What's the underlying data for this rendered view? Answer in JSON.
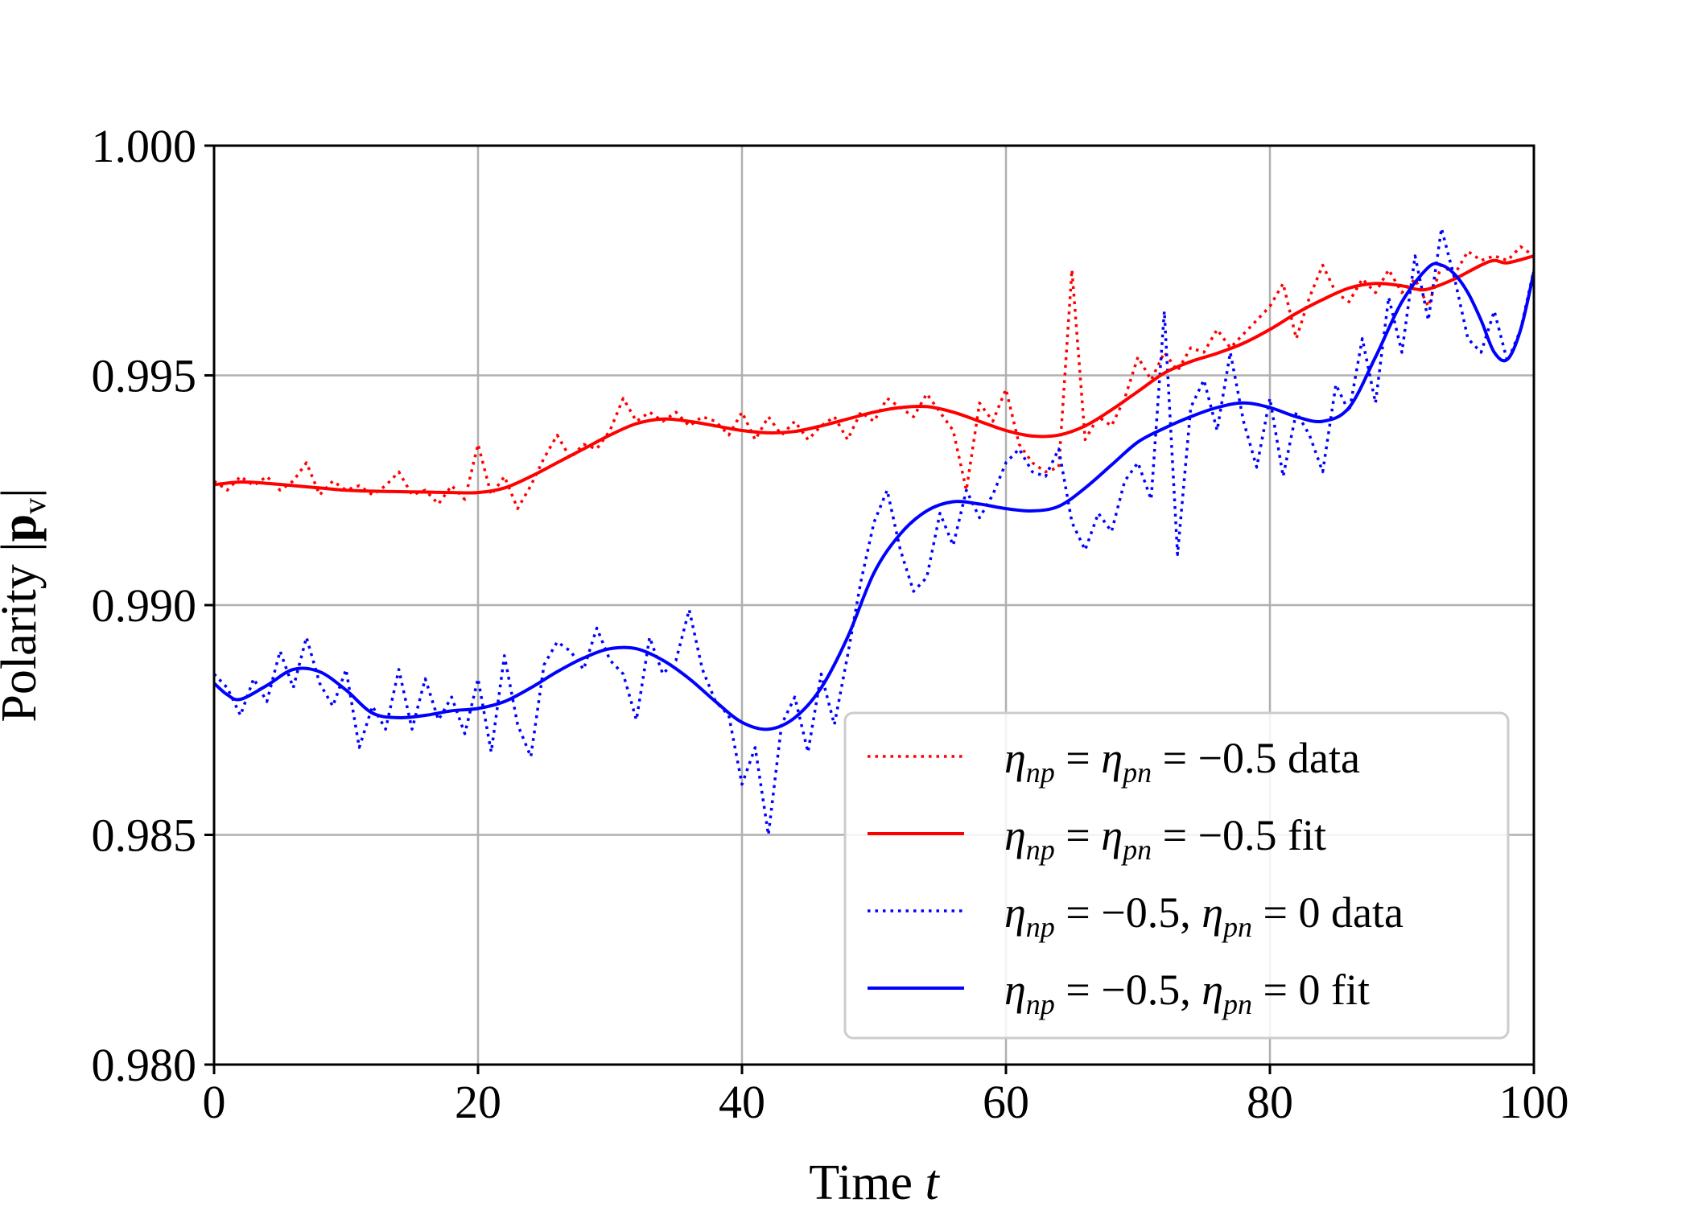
{
  "chart_data": {
    "type": "line",
    "title": "",
    "xlabel": "Time t",
    "xlabel_prefix": "Time ",
    "xlabel_var": "t",
    "ylabel": "Polarity |p_v|",
    "ylabel_prefix": "Polarity |",
    "ylabel_bold": "p",
    "ylabel_sub": "v",
    "ylabel_suffix": "|",
    "xlim": [
      0,
      100
    ],
    "ylim": [
      0.98,
      1.0
    ],
    "grid": true,
    "legend_position": "lower-right",
    "x_ticks": [
      {
        "value": 0,
        "label": "0"
      },
      {
        "value": 20,
        "label": "20"
      },
      {
        "value": 40,
        "label": "40"
      },
      {
        "value": 60,
        "label": "60"
      },
      {
        "value": 80,
        "label": "80"
      },
      {
        "value": 100,
        "label": "100"
      }
    ],
    "y_ticks": [
      {
        "value": 0.98,
        "label": "0.980"
      },
      {
        "value": 0.985,
        "label": "0.985"
      },
      {
        "value": 0.99,
        "label": "0.990"
      },
      {
        "value": 0.995,
        "label": "0.995"
      },
      {
        "value": 1.0,
        "label": "1.000"
      }
    ],
    "series": [
      {
        "name": "η_np = η_pn = −0.5 data",
        "legend": {
          "sym1": "η",
          "sub1": "np",
          "mid": " = ",
          "sym2": "η",
          "sub2": "pn",
          "rest": " = −0.5 data"
        },
        "color": "#ff0000",
        "style": "dotted",
        "x": [
          0,
          1,
          2,
          3,
          4,
          5,
          6,
          7,
          8,
          9,
          10,
          11,
          12,
          13,
          14,
          15,
          16,
          17,
          18,
          19,
          20,
          21,
          22,
          23,
          24,
          25,
          26,
          27,
          28,
          29,
          30,
          31,
          32,
          33,
          34,
          35,
          36,
          37,
          38,
          39,
          40,
          41,
          42,
          43,
          44,
          45,
          46,
          47,
          48,
          49,
          50,
          51,
          52,
          53,
          54,
          55,
          56,
          57,
          58,
          59,
          60,
          61,
          62,
          63,
          64,
          65,
          66,
          67,
          68,
          69,
          70,
          71,
          72,
          73,
          74,
          75,
          76,
          77,
          78,
          79,
          80,
          81,
          82,
          83,
          84,
          85,
          86,
          87,
          88,
          89,
          90,
          91,
          92,
          93,
          94,
          95,
          96,
          97,
          98,
          99,
          100
        ],
        "values": [
          0.9927,
          0.9925,
          0.9928,
          0.9926,
          0.9928,
          0.9925,
          0.9927,
          0.9931,
          0.9924,
          0.9927,
          0.9925,
          0.9926,
          0.9924,
          0.9926,
          0.9929,
          0.9924,
          0.9925,
          0.9922,
          0.9926,
          0.9923,
          0.9935,
          0.9924,
          0.9928,
          0.9921,
          0.9926,
          0.9932,
          0.9937,
          0.9932,
          0.9935,
          0.9934,
          0.9938,
          0.9945,
          0.994,
          0.9942,
          0.994,
          0.9942,
          0.9939,
          0.9941,
          0.994,
          0.9937,
          0.9942,
          0.9936,
          0.9941,
          0.9937,
          0.994,
          0.9936,
          0.9939,
          0.9941,
          0.9936,
          0.9942,
          0.994,
          0.9945,
          0.9943,
          0.9941,
          0.9946,
          0.9942,
          0.9938,
          0.9925,
          0.9944,
          0.994,
          0.9947,
          0.9935,
          0.9931,
          0.9929,
          0.993,
          0.9973,
          0.9936,
          0.9941,
          0.9939,
          0.9945,
          0.9954,
          0.9949,
          0.9955,
          0.9951,
          0.9956,
          0.9955,
          0.996,
          0.9956,
          0.9959,
          0.9962,
          0.9965,
          0.997,
          0.9958,
          0.9967,
          0.9974,
          0.9968,
          0.9966,
          0.9971,
          0.9968,
          0.9973,
          0.9968,
          0.9971,
          0.9965,
          0.9974,
          0.9972,
          0.9977,
          0.9975,
          0.9976,
          0.9975,
          0.9978,
          0.9976
        ]
      },
      {
        "name": "η_np = η_pn = −0.5 fit",
        "legend": {
          "sym1": "η",
          "sub1": "np",
          "mid": " = ",
          "sym2": "η",
          "sub2": "pn",
          "rest": " = −0.5 fit"
        },
        "color": "#ff0000",
        "style": "solid",
        "x": [
          0,
          2,
          4,
          6,
          8,
          10,
          12,
          14,
          16,
          18,
          20,
          22,
          24,
          26,
          28,
          30,
          32,
          34,
          36,
          38,
          40,
          42,
          44,
          46,
          48,
          50,
          52,
          54,
          56,
          58,
          60,
          62,
          64,
          66,
          68,
          70,
          72,
          74,
          76,
          78,
          80,
          82,
          84,
          86,
          88,
          90,
          91,
          92,
          94,
          96,
          97,
          98,
          100
        ],
        "values": [
          0.99262,
          0.99268,
          0.99265,
          0.9926,
          0.99255,
          0.9925,
          0.99248,
          0.99247,
          0.99246,
          0.99245,
          0.99245,
          0.99255,
          0.9928,
          0.9931,
          0.9934,
          0.9937,
          0.99395,
          0.99405,
          0.994,
          0.9939,
          0.9938,
          0.99375,
          0.99378,
          0.9939,
          0.99405,
          0.9942,
          0.9943,
          0.99432,
          0.9942,
          0.994,
          0.9938,
          0.99368,
          0.9937,
          0.9939,
          0.99425,
          0.99465,
          0.99505,
          0.9953,
          0.99548,
          0.9957,
          0.996,
          0.99635,
          0.99665,
          0.9969,
          0.997,
          0.99695,
          0.99688,
          0.99688,
          0.9971,
          0.9974,
          0.9975,
          0.99745,
          0.9976
        ]
      },
      {
        "name": "η_np = −0.5, η_pn = 0 data",
        "legend": {
          "sym1": "η",
          "sub1": "np",
          "mid": " = −0.5, ",
          "sym2": "η",
          "sub2": "pn",
          "rest": " = 0 data"
        },
        "color": "#0000ff",
        "style": "dotted",
        "x": [
          0,
          1,
          2,
          3,
          4,
          5,
          6,
          7,
          8,
          9,
          10,
          11,
          12,
          13,
          14,
          15,
          16,
          17,
          18,
          19,
          20,
          21,
          22,
          23,
          24,
          25,
          26,
          27,
          28,
          29,
          30,
          31,
          32,
          33,
          34,
          35,
          36,
          37,
          38,
          39,
          40,
          41,
          42,
          43,
          44,
          45,
          46,
          47,
          48,
          49,
          50,
          51,
          52,
          53,
          54,
          55,
          56,
          57,
          58,
          59,
          60,
          61,
          62,
          63,
          64,
          65,
          66,
          67,
          68,
          69,
          70,
          71,
          72,
          73,
          74,
          75,
          76,
          77,
          78,
          79,
          80,
          81,
          82,
          83,
          84,
          85,
          86,
          87,
          88,
          89,
          90,
          91,
          92,
          93,
          94,
          95,
          96,
          97,
          98,
          99,
          100
        ],
        "values": [
          0.9885,
          0.9882,
          0.9876,
          0.9884,
          0.9879,
          0.989,
          0.9882,
          0.9893,
          0.9883,
          0.9878,
          0.9886,
          0.9869,
          0.9878,
          0.9873,
          0.9886,
          0.9873,
          0.9884,
          0.9875,
          0.988,
          0.9872,
          0.9884,
          0.9868,
          0.9889,
          0.9874,
          0.9867,
          0.9887,
          0.9892,
          0.989,
          0.9886,
          0.9895,
          0.9888,
          0.9885,
          0.9875,
          0.9893,
          0.9885,
          0.9888,
          0.9899,
          0.9886,
          0.9879,
          0.9876,
          0.9861,
          0.9869,
          0.985,
          0.9874,
          0.988,
          0.9868,
          0.9885,
          0.9874,
          0.9889,
          0.9905,
          0.9918,
          0.9925,
          0.9912,
          0.9903,
          0.9906,
          0.992,
          0.9913,
          0.9925,
          0.9919,
          0.9924,
          0.9931,
          0.9934,
          0.9929,
          0.9928,
          0.9934,
          0.9918,
          0.9912,
          0.992,
          0.9916,
          0.9927,
          0.9931,
          0.9923,
          0.9964,
          0.9911,
          0.9943,
          0.9949,
          0.9938,
          0.9955,
          0.994,
          0.993,
          0.9945,
          0.9928,
          0.9942,
          0.9937,
          0.9929,
          0.9948,
          0.9942,
          0.9958,
          0.9944,
          0.9967,
          0.9955,
          0.9976,
          0.9962,
          0.9982,
          0.9971,
          0.9958,
          0.9955,
          0.9964,
          0.9953,
          0.996,
          0.9973
        ]
      },
      {
        "name": "η_np = −0.5, η_pn = 0 fit",
        "legend": {
          "sym1": "η",
          "sub1": "np",
          "mid": " = −0.5, ",
          "sym2": "η",
          "sub2": "pn",
          "rest": " = 0 fit"
        },
        "color": "#0000ff",
        "style": "solid",
        "x": [
          0,
          1,
          2,
          4,
          6,
          8,
          10,
          12,
          14,
          16,
          18,
          20,
          22,
          24,
          26,
          28,
          30,
          32,
          34,
          36,
          38,
          40,
          42,
          44,
          46,
          48,
          50,
          52,
          54,
          56,
          58,
          60,
          62,
          64,
          66,
          68,
          70,
          72,
          74,
          76,
          78,
          80,
          82,
          84,
          86,
          88,
          90,
          92,
          93,
          94,
          95,
          96,
          97,
          98,
          99,
          100
        ],
        "values": [
          0.9883,
          0.98805,
          0.98795,
          0.98825,
          0.9886,
          0.98855,
          0.98815,
          0.98765,
          0.98755,
          0.9876,
          0.9877,
          0.98775,
          0.9879,
          0.9882,
          0.98855,
          0.98885,
          0.98905,
          0.98905,
          0.9888,
          0.9884,
          0.9879,
          0.98745,
          0.9873,
          0.98755,
          0.9882,
          0.9893,
          0.9907,
          0.99155,
          0.99205,
          0.99225,
          0.9922,
          0.9921,
          0.99205,
          0.99215,
          0.99255,
          0.99305,
          0.99355,
          0.99385,
          0.9941,
          0.9943,
          0.9944,
          0.9943,
          0.9941,
          0.994,
          0.9943,
          0.9954,
          0.9966,
          0.99735,
          0.9974,
          0.9972,
          0.9968,
          0.9962,
          0.9955,
          0.99535,
          0.996,
          0.99725
        ]
      }
    ]
  }
}
